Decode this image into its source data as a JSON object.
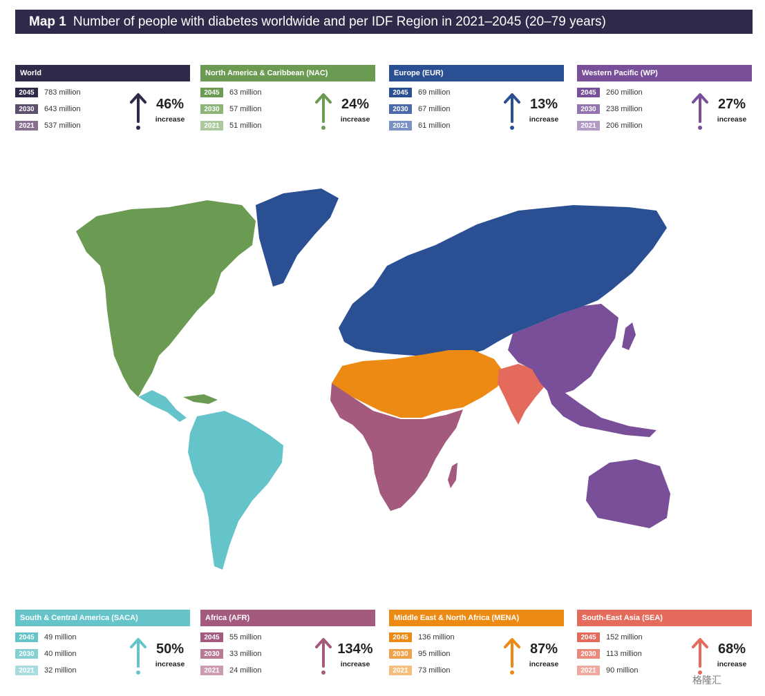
{
  "header": {
    "map_number": "Map 1",
    "title": "Number of people with diabetes worldwide and per IDF Region in 2021–2045 (20–79 years)"
  },
  "panels": [
    {
      "name": "World",
      "color": "#2d2a4a",
      "years": [
        "2045",
        "2030",
        "2021"
      ],
      "yearColors": [
        "#2d2a4a",
        "#5d4f6e",
        "#8a7090"
      ],
      "values": [
        "783 million",
        "643 million",
        "537 million"
      ],
      "pct": "46%",
      "increase": "increase"
    },
    {
      "name": "North America & Caribbean (NAC)",
      "color": "#6b9b52",
      "years": [
        "2045",
        "2030",
        "2021"
      ],
      "yearColors": [
        "#6b9b52",
        "#8db577",
        "#adc99e"
      ],
      "values": [
        "63 million",
        "57 million",
        "51 million"
      ],
      "pct": "24%",
      "increase": "increase"
    },
    {
      "name": "Europe (EUR)",
      "color": "#2b4f93",
      "years": [
        "2045",
        "2030",
        "2021"
      ],
      "yearColors": [
        "#2b4f93",
        "#4a6aab",
        "#7a91c4"
      ],
      "values": [
        "69 million",
        "67 million",
        "61 million"
      ],
      "pct": "13%",
      "increase": "increase"
    },
    {
      "name": "Western Pacific (WP)",
      "color": "#7a4f9a",
      "years": [
        "2045",
        "2030",
        "2021"
      ],
      "yearColors": [
        "#7a4f9a",
        "#9474b0",
        "#b29bc7"
      ],
      "values": [
        "260 million",
        "238 million",
        "206 million"
      ],
      "pct": "27%",
      "increase": "increase"
    },
    {
      "name": "South & Central America (SACA)",
      "color": "#65c4c9",
      "years": [
        "2045",
        "2030",
        "2021"
      ],
      "yearColors": [
        "#65c4c9",
        "#86d0d4",
        "#a8dde0"
      ],
      "values": [
        "49 million",
        "40 million",
        "32 million"
      ],
      "pct": "50%",
      "increase": "increase"
    },
    {
      "name": "Africa (AFR)",
      "color": "#a35a7d",
      "years": [
        "2045",
        "2030",
        "2021"
      ],
      "yearColors": [
        "#a35a7d",
        "#b77994",
        "#cc9bb1"
      ],
      "values": [
        "55 million",
        "33 million",
        "24 million"
      ],
      "pct": "134%",
      "increase": "increase"
    },
    {
      "name": "Middle East & North Africa (MENA)",
      "color": "#ec8a14",
      "years": [
        "2045",
        "2030",
        "2021"
      ],
      "yearColors": [
        "#ec8a14",
        "#f0a24a",
        "#f5bd7e"
      ],
      "values": [
        "136 million",
        "95 million",
        "73 million"
      ],
      "pct": "87%",
      "increase": "increase"
    },
    {
      "name": "South-East Asia (SEA)",
      "color": "#e46b5c",
      "years": [
        "2045",
        "2030",
        "2021"
      ],
      "yearColors": [
        "#e46b5c",
        "#ea8a7d",
        "#f0a99f"
      ],
      "values": [
        "152 million",
        "113 million",
        "90 million"
      ],
      "pct": "68%",
      "increase": "increase"
    }
  ],
  "watermark": "格隆汇"
}
